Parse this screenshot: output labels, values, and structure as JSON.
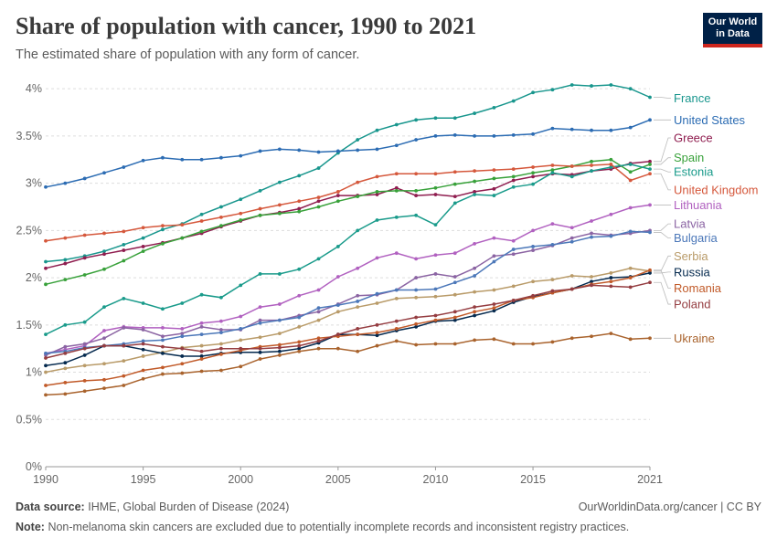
{
  "header": {
    "title": "Share of population with cancer, 1990 to 2021",
    "subtitle": "The estimated share of population with any form of cancer.",
    "logo_line1": "Our World",
    "logo_line2": "in Data"
  },
  "footer": {
    "source_label": "Data source:",
    "source_text": "IHME, Global Burden of Disease (2024)",
    "link_text": "OurWorldinData.org/cancer | CC BY",
    "note_label": "Note:",
    "note_text": "Non-melanoma skin cancers are excluded due to potentially incomplete records and inconsistent registry practices."
  },
  "chart_data": {
    "type": "line",
    "title": "Share of population with cancer, 1990 to 2021",
    "subtitle": "The estimated share of population with any form of cancer.",
    "x": [
      1990,
      1991,
      1992,
      1993,
      1994,
      1995,
      1996,
      1997,
      1998,
      1999,
      2000,
      2001,
      2002,
      2003,
      2004,
      2005,
      2006,
      2007,
      2008,
      2009,
      2010,
      2011,
      2012,
      2013,
      2014,
      2015,
      2016,
      2017,
      2018,
      2019,
      2020,
      2021
    ],
    "x_ticks": [
      1990,
      1995,
      2000,
      2005,
      2010,
      2015,
      2021
    ],
    "y_ticks": [
      0,
      0.5,
      1,
      1.5,
      2,
      2.5,
      3,
      3.5,
      4
    ],
    "y_tick_labels": [
      "0%",
      "0.5%",
      "1%",
      "1.5%",
      "2%",
      "2.5%",
      "3%",
      "3.5%",
      "4%"
    ],
    "ylim": [
      0,
      4.05
    ],
    "xlim": [
      1990,
      2021
    ],
    "grid": "horizontal dashed",
    "legend": "right, labels at line ends",
    "series": [
      {
        "name": "France",
        "color": "#18968d",
        "label_y": 3.9,
        "values": [
          2.17,
          2.19,
          2.23,
          2.28,
          2.35,
          2.42,
          2.51,
          2.57,
          2.67,
          2.75,
          2.83,
          2.92,
          3.01,
          3.08,
          3.16,
          3.32,
          3.46,
          3.56,
          3.62,
          3.67,
          3.69,
          3.69,
          3.74,
          3.8,
          3.87,
          3.96,
          3.99,
          4.04,
          4.03,
          4.04,
          4.0,
          3.91
        ]
      },
      {
        "name": "United States",
        "color": "#2c6cb3",
        "label_y": 3.67,
        "values": [
          2.96,
          3.0,
          3.05,
          3.11,
          3.17,
          3.24,
          3.27,
          3.25,
          3.25,
          3.27,
          3.29,
          3.34,
          3.36,
          3.35,
          3.33,
          3.34,
          3.35,
          3.36,
          3.4,
          3.46,
          3.5,
          3.51,
          3.5,
          3.5,
          3.51,
          3.52,
          3.58,
          3.57,
          3.56,
          3.56,
          3.59,
          3.67
        ]
      },
      {
        "name": "Greece",
        "color": "#8f1d4f",
        "label_y": 3.48,
        "values": [
          2.1,
          2.15,
          2.21,
          2.25,
          2.29,
          2.33,
          2.37,
          2.42,
          2.47,
          2.54,
          2.6,
          2.66,
          2.69,
          2.73,
          2.81,
          2.87,
          2.87,
          2.88,
          2.95,
          2.87,
          2.88,
          2.86,
          2.91,
          2.94,
          3.03,
          3.07,
          3.1,
          3.09,
          3.13,
          3.15,
          3.21,
          3.23
        ]
      },
      {
        "name": "Spain",
        "color": "#38a13a",
        "label_y": 3.27,
        "values": [
          1.93,
          1.98,
          2.03,
          2.09,
          2.18,
          2.28,
          2.36,
          2.42,
          2.49,
          2.55,
          2.61,
          2.66,
          2.68,
          2.7,
          2.75,
          2.81,
          2.86,
          2.91,
          2.92,
          2.92,
          2.95,
          2.99,
          3.02,
          3.05,
          3.07,
          3.11,
          3.14,
          3.18,
          3.23,
          3.25,
          3.12,
          3.2
        ]
      },
      {
        "name": "Estonia",
        "color": "#1a9b8b",
        "label_y": 3.12,
        "values": [
          1.4,
          1.5,
          1.53,
          1.69,
          1.78,
          1.73,
          1.67,
          1.73,
          1.82,
          1.79,
          1.92,
          2.04,
          2.04,
          2.09,
          2.2,
          2.33,
          2.5,
          2.61,
          2.64,
          2.66,
          2.56,
          2.79,
          2.88,
          2.87,
          2.96,
          2.99,
          3.11,
          3.07,
          3.13,
          3.17,
          3.2,
          3.15
        ]
      },
      {
        "name": "United Kingdom",
        "color": "#d5583c",
        "label_y": 2.93,
        "values": [
          2.39,
          2.42,
          2.45,
          2.47,
          2.49,
          2.53,
          2.55,
          2.56,
          2.6,
          2.64,
          2.68,
          2.73,
          2.77,
          2.81,
          2.85,
          2.91,
          3.01,
          3.07,
          3.1,
          3.1,
          3.1,
          3.12,
          3.13,
          3.14,
          3.15,
          3.17,
          3.19,
          3.18,
          3.19,
          3.2,
          3.03,
          3.1
        ]
      },
      {
        "name": "Lithuania",
        "color": "#b161c0",
        "label_y": 2.77,
        "values": [
          1.2,
          1.24,
          1.28,
          1.44,
          1.48,
          1.47,
          1.47,
          1.46,
          1.52,
          1.54,
          1.59,
          1.69,
          1.72,
          1.81,
          1.87,
          2.01,
          2.1,
          2.21,
          2.26,
          2.2,
          2.24,
          2.26,
          2.36,
          2.42,
          2.39,
          2.5,
          2.57,
          2.53,
          2.6,
          2.67,
          2.74,
          2.77
        ]
      },
      {
        "name": "Latvia",
        "color": "#8b64a3",
        "label_y": 2.57,
        "values": [
          1.18,
          1.27,
          1.3,
          1.36,
          1.47,
          1.45,
          1.38,
          1.41,
          1.48,
          1.45,
          1.45,
          1.55,
          1.55,
          1.6,
          1.64,
          1.72,
          1.81,
          1.82,
          1.87,
          2.0,
          2.04,
          2.01,
          2.1,
          2.23,
          2.25,
          2.29,
          2.34,
          2.42,
          2.47,
          2.45,
          2.47,
          2.5
        ]
      },
      {
        "name": "Bulgaria",
        "color": "#4c78b9",
        "label_y": 2.42,
        "values": [
          1.2,
          1.22,
          1.26,
          1.28,
          1.3,
          1.33,
          1.34,
          1.38,
          1.4,
          1.42,
          1.46,
          1.52,
          1.55,
          1.58,
          1.68,
          1.71,
          1.75,
          1.83,
          1.87,
          1.87,
          1.88,
          1.95,
          2.02,
          2.17,
          2.3,
          2.33,
          2.35,
          2.38,
          2.43,
          2.44,
          2.49,
          2.48
        ]
      },
      {
        "name": "Serbia",
        "color": "#b99b69",
        "label_y": 2.23,
        "values": [
          1.0,
          1.04,
          1.07,
          1.09,
          1.12,
          1.17,
          1.21,
          1.26,
          1.28,
          1.3,
          1.34,
          1.37,
          1.41,
          1.48,
          1.55,
          1.64,
          1.69,
          1.73,
          1.78,
          1.79,
          1.8,
          1.82,
          1.85,
          1.87,
          1.91,
          1.96,
          1.98,
          2.02,
          2.01,
          2.05,
          2.1,
          2.07
        ]
      },
      {
        "name": "Russia",
        "color": "#04294e",
        "label_y": 2.06,
        "values": [
          1.07,
          1.1,
          1.18,
          1.28,
          1.28,
          1.24,
          1.2,
          1.17,
          1.17,
          1.2,
          1.21,
          1.21,
          1.22,
          1.25,
          1.31,
          1.4,
          1.4,
          1.39,
          1.44,
          1.48,
          1.54,
          1.55,
          1.6,
          1.65,
          1.74,
          1.8,
          1.84,
          1.88,
          1.96,
          2.0,
          2.01,
          2.05
        ]
      },
      {
        "name": "Romania",
        "color": "#c15a29",
        "label_y": 1.89,
        "values": [
          0.86,
          0.89,
          0.91,
          0.92,
          0.96,
          1.02,
          1.05,
          1.09,
          1.14,
          1.19,
          1.23,
          1.27,
          1.29,
          1.32,
          1.36,
          1.38,
          1.4,
          1.42,
          1.46,
          1.51,
          1.55,
          1.58,
          1.64,
          1.68,
          1.76,
          1.79,
          1.84,
          1.88,
          1.93,
          1.96,
          2.0,
          2.08
        ]
      },
      {
        "name": "Poland",
        "color": "#953d41",
        "label_y": 1.72,
        "values": [
          1.15,
          1.2,
          1.25,
          1.28,
          1.28,
          1.3,
          1.27,
          1.25,
          1.22,
          1.25,
          1.25,
          1.25,
          1.26,
          1.28,
          1.33,
          1.4,
          1.46,
          1.5,
          1.54,
          1.58,
          1.6,
          1.64,
          1.69,
          1.72,
          1.76,
          1.81,
          1.86,
          1.88,
          1.92,
          1.91,
          1.9,
          1.95
        ]
      },
      {
        "name": "Ukraine",
        "color": "#a9632d",
        "label_y": 1.36,
        "values": [
          0.76,
          0.77,
          0.8,
          0.83,
          0.86,
          0.93,
          0.98,
          0.99,
          1.01,
          1.02,
          1.06,
          1.14,
          1.18,
          1.22,
          1.25,
          1.25,
          1.22,
          1.28,
          1.33,
          1.29,
          1.3,
          1.3,
          1.34,
          1.35,
          1.3,
          1.3,
          1.32,
          1.36,
          1.38,
          1.41,
          1.35,
          1.36
        ]
      }
    ]
  }
}
